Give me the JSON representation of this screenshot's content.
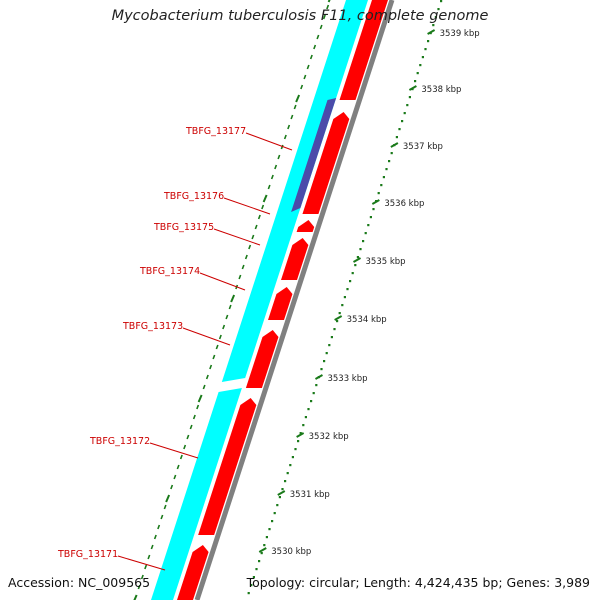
{
  "title": "Mycobacterium tuberculosis F11, complete genome",
  "accession": "Accession: NC_009565",
  "topology": "Topology: circular; Length: 4,424,435 bp; Genes: 3,989",
  "colors": {
    "forward_genes": "#00FFFF",
    "reverse_genes": "#FF0000",
    "highlight_gene": "#4B4BAA",
    "backbone": "#808080",
    "label": "#CC0000",
    "ticks": "#1A7A1A"
  },
  "scale_labels": [
    "3539 kbp",
    "3538 kbp",
    "3537 kbp",
    "3536 kbp",
    "3535 kbp",
    "3534 kbp",
    "3533 kbp",
    "3532 kbp",
    "3531 kbp",
    "3530 kbp"
  ],
  "gene_labels": [
    "TBFG_13177",
    "TBFG_13176",
    "TBFG_13175",
    "TBFG_13174",
    "TBFG_13173",
    "TBFG_13172",
    "TBFG_13171"
  ]
}
